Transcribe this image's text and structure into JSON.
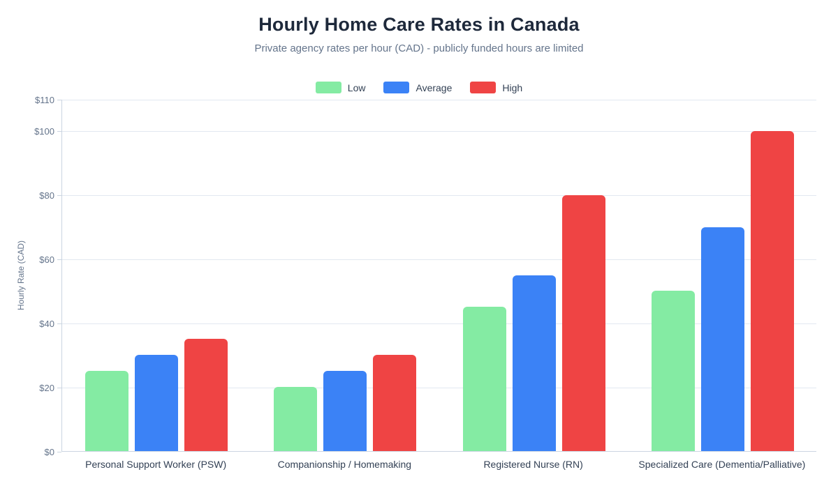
{
  "header": {
    "title": "Hourly Home Care Rates in Canada",
    "subtitle": "Private agency rates per hour (CAD) - publicly funded hours are limited"
  },
  "chart_data": {
    "type": "bar",
    "title": "Hourly Home Care Rates in Canada",
    "subtitle": "Private agency rates per hour (CAD) - publicly funded hours are limited",
    "categories": [
      "Personal Support Worker (PSW)",
      "Companionship / Homemaking",
      "Registered Nurse (RN)",
      "Specialized Care (Dementia/Palliative)"
    ],
    "series": [
      {
        "name": "Low",
        "color": "#84eba3",
        "values": [
          25,
          20,
          45,
          50
        ]
      },
      {
        "name": "Average",
        "color": "#3b82f6",
        "values": [
          30,
          25,
          55,
          70
        ]
      },
      {
        "name": "High",
        "color": "#ef4444",
        "values": [
          35,
          30,
          80,
          100
        ]
      }
    ],
    "xlabel": "",
    "ylabel": "Hourly Rate (CAD)",
    "ylim": [
      0,
      110
    ],
    "yticks": [
      0,
      20,
      40,
      60,
      80,
      100,
      110
    ],
    "ytick_prefix": "$",
    "grid": true,
    "legend_position": "top"
  }
}
